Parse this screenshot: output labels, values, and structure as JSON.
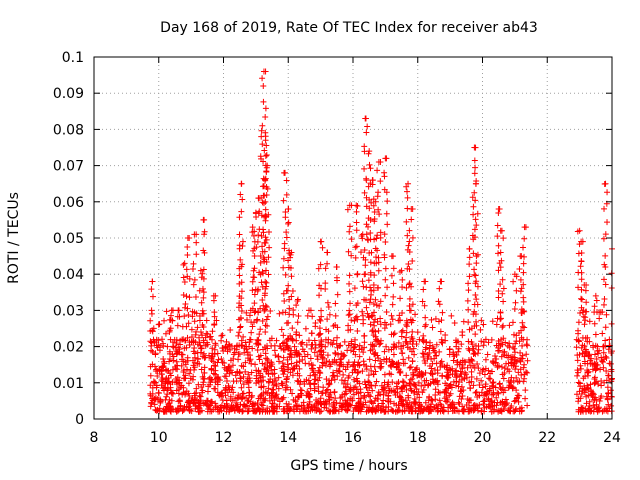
{
  "chart_data": {
    "type": "scatter",
    "title": "Day 168 of 2019, Rate Of TEC Index for receiver ab43",
    "xlabel": "GPS time / hours",
    "ylabel": "ROTI / TECUs",
    "xlim": [
      8,
      24
    ],
    "ylim": [
      0,
      0.1
    ],
    "x_ticks": [
      "8",
      "10",
      "12",
      "14",
      "16",
      "18",
      "20",
      "22",
      "24"
    ],
    "y_ticks": [
      "0",
      "0.01",
      "0.02",
      "0.03",
      "0.04",
      "0.05",
      "0.06",
      "0.07",
      "0.08",
      "0.09",
      "0.1"
    ],
    "grid": true,
    "marker": "+",
    "color": "#ff0000",
    "series": [
      {
        "name": "ROTI",
        "description": "dense noise band 0.003-0.02 TECU over 9.7-21.4 h and 22.9-24 h, with spikes",
        "peaks": [
          {
            "x": 9.8,
            "y": 0.038
          },
          {
            "x": 10.4,
            "y": 0.03
          },
          {
            "x": 10.6,
            "y": 0.03
          },
          {
            "x": 10.8,
            "y": 0.043
          },
          {
            "x": 10.9,
            "y": 0.05
          },
          {
            "x": 11.1,
            "y": 0.051
          },
          {
            "x": 11.3,
            "y": 0.041
          },
          {
            "x": 11.4,
            "y": 0.055
          },
          {
            "x": 11.7,
            "y": 0.034
          },
          {
            "x": 12.5,
            "y": 0.048
          },
          {
            "x": 12.55,
            "y": 0.065
          },
          {
            "x": 12.9,
            "y": 0.053
          },
          {
            "x": 13.0,
            "y": 0.057
          },
          {
            "x": 13.1,
            "y": 0.061
          },
          {
            "x": 13.2,
            "y": 0.081
          },
          {
            "x": 13.25,
            "y": 0.096
          },
          {
            "x": 13.3,
            "y": 0.077
          },
          {
            "x": 13.35,
            "y": 0.07
          },
          {
            "x": 13.9,
            "y": 0.068
          },
          {
            "x": 14.0,
            "y": 0.058
          },
          {
            "x": 14.1,
            "y": 0.046
          },
          {
            "x": 14.3,
            "y": 0.033
          },
          {
            "x": 14.7,
            "y": 0.03
          },
          {
            "x": 15.0,
            "y": 0.049
          },
          {
            "x": 15.2,
            "y": 0.046
          },
          {
            "x": 15.5,
            "y": 0.042
          },
          {
            "x": 15.9,
            "y": 0.059
          },
          {
            "x": 16.1,
            "y": 0.059
          },
          {
            "x": 16.3,
            "y": 0.051
          },
          {
            "x": 16.4,
            "y": 0.083
          },
          {
            "x": 16.5,
            "y": 0.074
          },
          {
            "x": 16.6,
            "y": 0.066
          },
          {
            "x": 16.7,
            "y": 0.06
          },
          {
            "x": 16.8,
            "y": 0.071
          },
          {
            "x": 17.0,
            "y": 0.072
          },
          {
            "x": 17.2,
            "y": 0.045
          },
          {
            "x": 17.5,
            "y": 0.041
          },
          {
            "x": 17.7,
            "y": 0.065
          },
          {
            "x": 17.8,
            "y": 0.058
          },
          {
            "x": 18.2,
            "y": 0.038
          },
          {
            "x": 18.7,
            "y": 0.038
          },
          {
            "x": 19.6,
            "y": 0.047
          },
          {
            "x": 19.75,
            "y": 0.075
          },
          {
            "x": 19.8,
            "y": 0.065
          },
          {
            "x": 20.5,
            "y": 0.058
          },
          {
            "x": 20.6,
            "y": 0.052
          },
          {
            "x": 21.0,
            "y": 0.04
          },
          {
            "x": 21.2,
            "y": 0.045
          },
          {
            "x": 21.3,
            "y": 0.053
          },
          {
            "x": 23.0,
            "y": 0.052
          },
          {
            "x": 23.1,
            "y": 0.049
          },
          {
            "x": 23.2,
            "y": 0.037
          },
          {
            "x": 23.5,
            "y": 0.034
          },
          {
            "x": 23.8,
            "y": 0.065
          },
          {
            "x": 24.0,
            "y": 0.047
          }
        ],
        "gaps": [
          [
            21.4,
            22.9
          ]
        ]
      }
    ]
  }
}
